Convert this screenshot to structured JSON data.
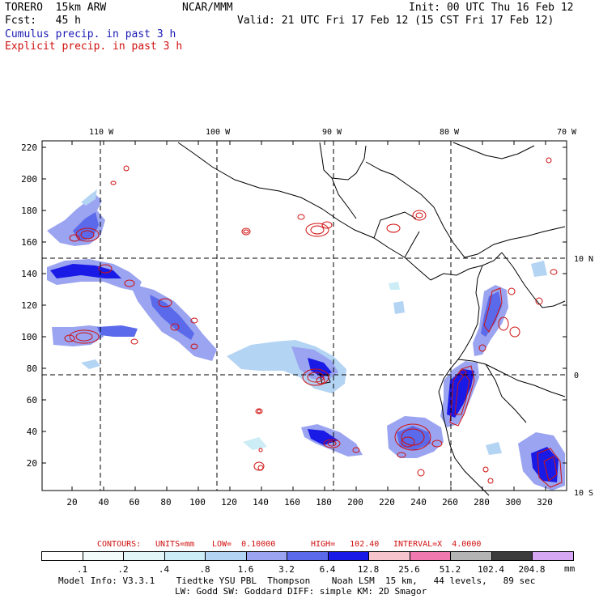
{
  "header": {
    "model": "TORERO  15km ARW",
    "org": "NCAR/MMM",
    "init": "Init: 00 UTC Thu 16 Feb 12",
    "fcst": "Fcst:   45 h",
    "valid": "Valid: 21 UTC Fri 17 Feb 12 (15 CST Fri 17 Feb 12)",
    "field1": "Cumulus precip. in past 3 h",
    "field2": "Explicit precip. in past 3 h",
    "field1_color": "#1a1ab4",
    "field2_color": "#d01010"
  },
  "map": {
    "top_labels": [
      "110 W",
      "100 W",
      "90 W",
      "80 W",
      "70 W"
    ],
    "right_labels": [
      "10 N",
      "0",
      "10 S"
    ],
    "y_ticks": [
      "220",
      "200",
      "180",
      "160",
      "140",
      "120",
      "100",
      "80",
      "60",
      "40",
      "20"
    ],
    "x_ticks": [
      "20",
      "40",
      "60",
      "80",
      "100",
      "120",
      "140",
      "160",
      "180",
      "200",
      "220",
      "240",
      "260",
      "280",
      "300",
      "320"
    ]
  },
  "contours_info": {
    "contours": "CONTOURS:",
    "units": "UNITS=mm",
    "low": "LOW=  0.10000",
    "high": "HIGH=   102.40",
    "interval": "INTERVAL=X  4.0000"
  },
  "colorbar": {
    "colors": [
      "#ffffff",
      "#f2fafa",
      "#e2f6f8",
      "#ccecf6",
      "#b4d4f4",
      "#9aa4f0",
      "#5a6aea",
      "#1a1ae6",
      "#f6c4cc",
      "#f07ab0",
      "#b4b4b4",
      "#3c3c3c",
      "#d6a8f4"
    ],
    "labels": [
      ".1",
      ".2",
      ".4",
      ".8",
      "1.6",
      "3.2",
      "6.4",
      "12.8",
      "25.6",
      "51.2",
      "102.4",
      "204.8"
    ],
    "unit": "mm"
  },
  "footer": {
    "line1": "Model Info: V3.3.1    Tiedtke YSU PBL  Thompson    Noah LSM  15 km,   44 levels,   89 sec",
    "line2": "LW: Godd SW: Goddard DIFF: simple KM: 2D Smagor"
  }
}
